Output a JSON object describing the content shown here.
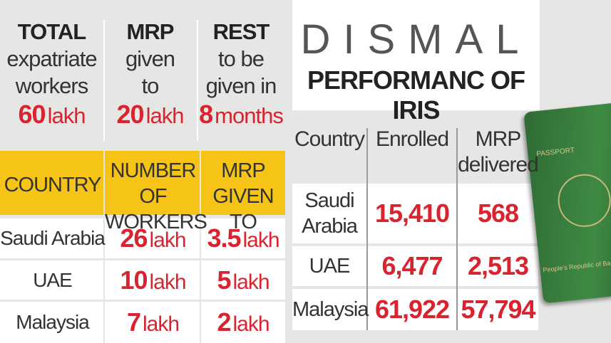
{
  "summary": [
    {
      "heading": "TOTAL",
      "lines": [
        "expatriate",
        "workers"
      ],
      "value": "60",
      "unit": "lakh"
    },
    {
      "heading": "MRP",
      "lines": [
        "given",
        "to"
      ],
      "value": "20",
      "unit": "lakh"
    },
    {
      "heading": "REST",
      "lines": [
        "to be",
        "given in"
      ],
      "value": "8",
      "unit": "months"
    }
  ],
  "left_table": {
    "headers": [
      [
        "COUNTRY"
      ],
      [
        "NUMBER OF",
        "WORKERS"
      ],
      [
        "MRP",
        "GIVEN TO"
      ]
    ],
    "rows": [
      {
        "country": "Saudi Arabia",
        "workers": "26",
        "workers_unit": "lakh",
        "mrp": "3.5",
        "mrp_unit": "lakh"
      },
      {
        "country": "UAE",
        "workers": "10",
        "workers_unit": "lakh",
        "mrp": "5",
        "mrp_unit": "lakh"
      },
      {
        "country": "Malaysia",
        "workers": "7",
        "workers_unit": "lakh",
        "mrp": "2",
        "mrp_unit": "lakh"
      }
    ]
  },
  "right": {
    "title": "DISMAL",
    "subtitle": "PERFORMANC OF IRIS",
    "headers": [
      [
        "Country"
      ],
      [
        "Enrolled"
      ],
      [
        "MRP",
        "delivered"
      ]
    ],
    "rows": [
      {
        "country": [
          "Saudi",
          "Arabia"
        ],
        "enrolled": "15,410",
        "delivered": "568"
      },
      {
        "country": [
          "UAE"
        ],
        "enrolled": "6,477",
        "delivered": "2,513"
      },
      {
        "country": [
          "Malaysia"
        ],
        "enrolled": "61,922",
        "delivered": "57,794"
      }
    ]
  },
  "passport": {
    "label": "PASSPORT",
    "country": "People's Republic of Ba"
  }
}
